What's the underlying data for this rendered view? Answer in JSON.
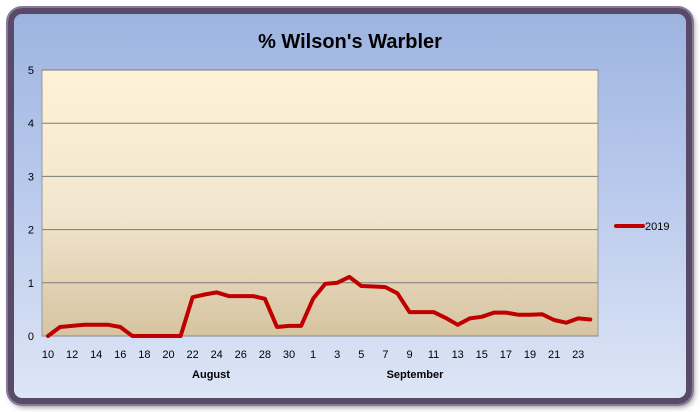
{
  "chart_data": {
    "type": "line",
    "title": "% Wilson's Warbler",
    "xlabel": "",
    "ylabel": "",
    "ylim": [
      0,
      5
    ],
    "y_ticks": [
      "0",
      "1",
      "2",
      "3",
      "4",
      "5"
    ],
    "x": [
      "10",
      "11",
      "12",
      "13",
      "14",
      "15",
      "16",
      "17",
      "18",
      "19",
      "20",
      "21",
      "22",
      "23",
      "24",
      "25",
      "26",
      "27",
      "28",
      "29",
      "30",
      "31",
      "1",
      "2",
      "3",
      "4",
      "5",
      "6",
      "7",
      "8",
      "9",
      "10",
      "11",
      "12",
      "13",
      "14",
      "15",
      "16",
      "17",
      "18",
      "19",
      "20",
      "21",
      "22",
      "23",
      "24"
    ],
    "x_tick_labels": [
      "10",
      "12",
      "14",
      "16",
      "18",
      "20",
      "22",
      "24",
      "26",
      "28",
      "30",
      "1",
      "3",
      "5",
      "7",
      "9",
      "11",
      "13",
      "15",
      "17",
      "19",
      "21",
      "23"
    ],
    "month_labels": [
      "August",
      "September"
    ],
    "grid": true,
    "legend_position": "right",
    "series": [
      {
        "name": "2019",
        "color": "#c00000",
        "values": [
          0,
          0.17,
          0.19,
          0.21,
          0.21,
          0.21,
          0.17,
          0,
          0,
          0,
          0,
          0,
          0.73,
          0.78,
          0.82,
          0.75,
          0.75,
          0.75,
          0.7,
          0.17,
          0.19,
          0.19,
          0.7,
          0.98,
          1.0,
          1.11,
          0.94,
          0.93,
          0.92,
          0.8,
          0.45,
          0.45,
          0.45,
          0.34,
          0.21,
          0.33,
          0.36,
          0.44,
          0.44,
          0.4,
          0.4,
          0.41,
          0.3,
          0.25,
          0.33,
          0.31
        ]
      }
    ]
  }
}
